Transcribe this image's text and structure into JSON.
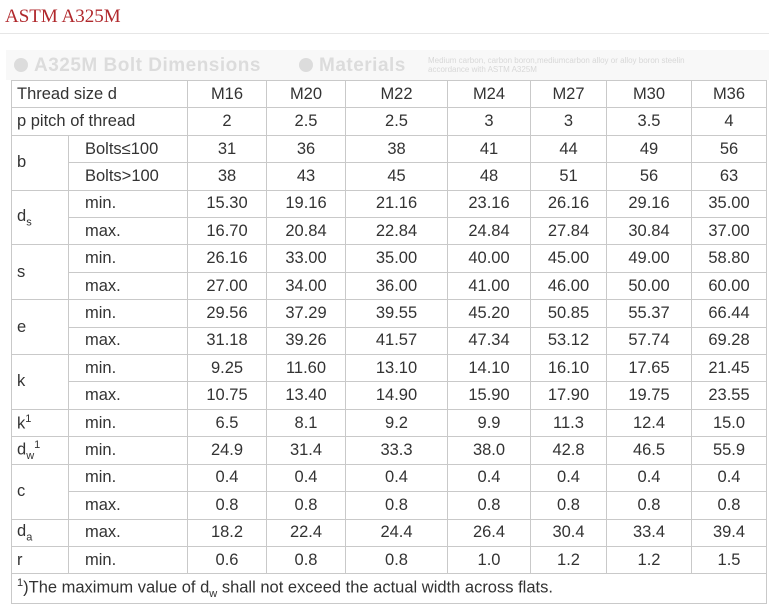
{
  "page": {
    "title": "ASTM A325M"
  },
  "banner": {
    "heading1": "A325M Bolt Dimensions",
    "heading2": "Materials",
    "note": "Medium carbon, carbon boron,mediumcarbon alloy or alloy boron steelin accordance with ASTM A325M"
  },
  "table": {
    "thread_size_label": "Thread size d",
    "sizes": [
      "M16",
      "M20",
      "M22",
      "M24",
      "M27",
      "M30",
      "M36"
    ],
    "pitch_label": "p  pitch of thread",
    "pitch": [
      "2",
      "2.5",
      "2.5",
      "3",
      "3",
      "3.5",
      "4"
    ],
    "b": {
      "label": "b",
      "le100_label": "Bolts≤100",
      "le100": [
        "31",
        "36",
        "38",
        "41",
        "44",
        "49",
        "56"
      ],
      "gt100_label": "Bolts>100",
      "gt100": [
        "38",
        "43",
        "45",
        "48",
        "51",
        "56",
        "63"
      ]
    },
    "ds": {
      "main": "d",
      "sub": "s",
      "min": [
        "15.30",
        "19.16",
        "21.16",
        "23.16",
        "26.16",
        "29.16",
        "35.00"
      ],
      "max": [
        "16.70",
        "20.84",
        "22.84",
        "24.84",
        "27.84",
        "30.84",
        "37.00"
      ]
    },
    "s": {
      "label": "s",
      "min": [
        "26.16",
        "33.00",
        "35.00",
        "40.00",
        "45.00",
        "49.00",
        "58.80"
      ],
      "max": [
        "27.00",
        "34.00",
        "36.00",
        "41.00",
        "46.00",
        "50.00",
        "60.00"
      ]
    },
    "e": {
      "label": "e",
      "min": [
        "29.56",
        "37.29",
        "39.55",
        "45.20",
        "50.85",
        "55.37",
        "66.44"
      ],
      "max": [
        "31.18",
        "39.26",
        "41.57",
        "47.34",
        "53.12",
        "57.74",
        "69.28"
      ]
    },
    "k": {
      "label": "k",
      "min": [
        "9.25",
        "11.60",
        "13.10",
        "14.10",
        "16.10",
        "17.65",
        "21.45"
      ],
      "max": [
        "10.75",
        "13.40",
        "14.90",
        "15.90",
        "17.90",
        "19.75",
        "23.55"
      ]
    },
    "k1": {
      "main": "k",
      "sup": "1",
      "min": [
        "6.5",
        "8.1",
        "9.2",
        "9.9",
        "11.3",
        "12.4",
        "15.0"
      ]
    },
    "dw": {
      "main": "d",
      "sub": "w",
      "sup": "1",
      "min": [
        "24.9",
        "31.4",
        "33.3",
        "38.0",
        "42.8",
        "46.5",
        "55.9"
      ]
    },
    "c": {
      "label": "c",
      "min": [
        "0.4",
        "0.4",
        "0.4",
        "0.4",
        "0.4",
        "0.4",
        "0.4"
      ],
      "max": [
        "0.8",
        "0.8",
        "0.8",
        "0.8",
        "0.8",
        "0.8",
        "0.8"
      ]
    },
    "da": {
      "main": "d",
      "sub": "a",
      "max": [
        "18.2",
        "22.4",
        "24.4",
        "26.4",
        "30.4",
        "33.4",
        "39.4"
      ]
    },
    "r": {
      "label": "r",
      "min": [
        "0.6",
        "0.8",
        "0.8",
        "1.0",
        "1.2",
        "1.2",
        "1.5"
      ]
    },
    "min_label": "min.",
    "max_label": "max."
  },
  "footnote": {
    "sup": "1",
    "text1": ")The maximum value of d",
    "sub": "w",
    "text2": " shall not exceed the actual width across flats."
  }
}
